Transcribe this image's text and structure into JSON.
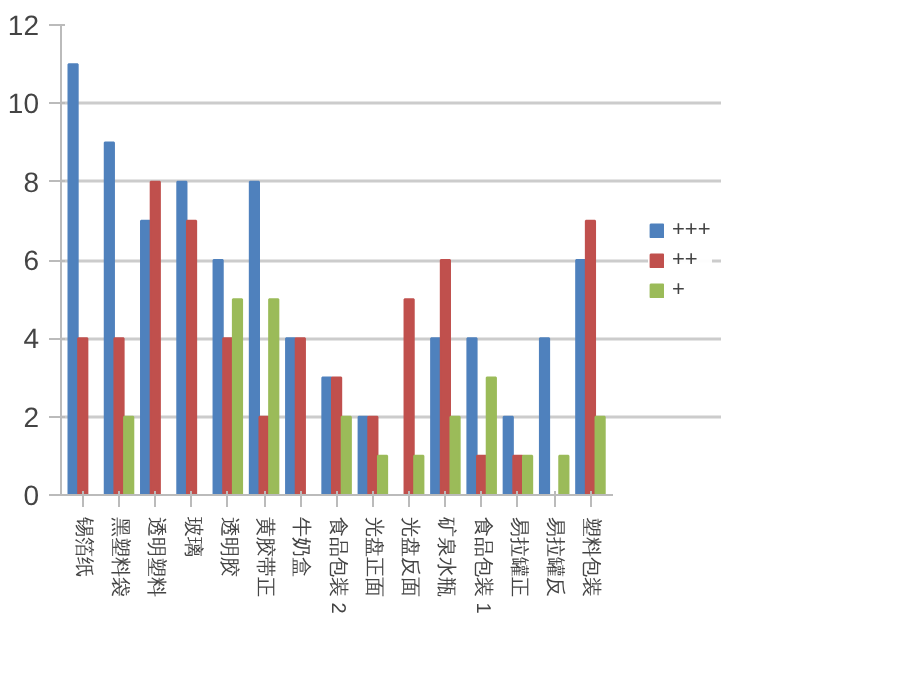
{
  "chart_data": {
    "type": "bar",
    "categories": [
      "锡箔纸",
      "黑塑料袋",
      "透明塑料",
      "玻璃",
      "透明胶",
      "黄胶带正",
      "牛奶盒",
      "食品包装 2",
      "光盘正面",
      "光盘反面",
      "矿泉水瓶",
      "食品包装 1",
      "易拉罐正",
      "易拉罐反",
      "塑料包装"
    ],
    "series": [
      {
        "name": "+++",
        "color": "#4f81bd",
        "values": [
          11,
          9,
          7,
          8,
          6,
          8,
          4,
          3,
          2,
          0,
          4,
          4,
          2,
          4,
          6
        ]
      },
      {
        "name": "++",
        "color": "#c0504d",
        "values": [
          4,
          4,
          8,
          7,
          4,
          2,
          4,
          3,
          2,
          5,
          6,
          1,
          1,
          0,
          7
        ]
      },
      {
        "name": "+",
        "color": "#9bbb59",
        "values": [
          0,
          2,
          0,
          0,
          5,
          5,
          0,
          2,
          1,
          1,
          2,
          3,
          1,
          1,
          2
        ]
      }
    ],
    "ylim": [
      0,
      12
    ],
    "yticks": [
      0,
      2,
      4,
      6,
      8,
      10,
      12
    ],
    "grid": "y",
    "legend": "right"
  }
}
